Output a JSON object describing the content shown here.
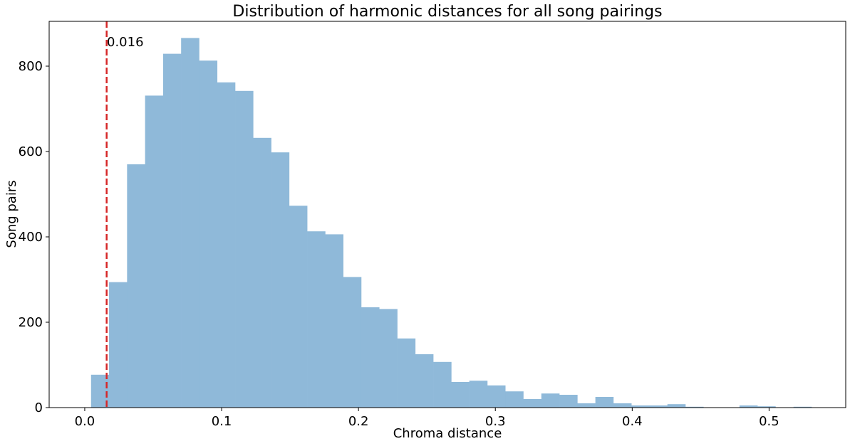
{
  "chart_data": {
    "type": "bar",
    "title": "Distribution of harmonic distances for all song pairings",
    "xlabel": "Chroma distance",
    "ylabel": "Song pairs",
    "xlim": [
      -0.026,
      0.556
    ],
    "ylim": [
      0,
      905
    ],
    "xticks": [
      0.0,
      0.1,
      0.2,
      0.3,
      0.4,
      0.5
    ],
    "xtick_labels": [
      "0.0",
      "0.1",
      "0.2",
      "0.3",
      "0.4",
      "0.5"
    ],
    "yticks": [
      0,
      200,
      400,
      600,
      800
    ],
    "ytick_labels": [
      "0",
      "200",
      "400",
      "600",
      "800"
    ],
    "bin_start": 0.0046,
    "bin_width": 0.01316,
    "values": [
      77,
      294,
      570,
      731,
      829,
      866,
      813,
      762,
      742,
      632,
      598,
      473,
      413,
      406,
      306,
      235,
      231,
      162,
      125,
      107,
      60,
      63,
      52,
      38,
      20,
      33,
      30,
      10,
      25,
      10,
      5,
      5,
      8,
      2,
      0,
      0,
      5,
      3,
      0,
      2
    ],
    "bar_color": "#8fb9d9",
    "grid": false,
    "vline": {
      "x": 0.016,
      "color": "#d62728",
      "style": "dashed"
    },
    "annotation": "0.016"
  }
}
